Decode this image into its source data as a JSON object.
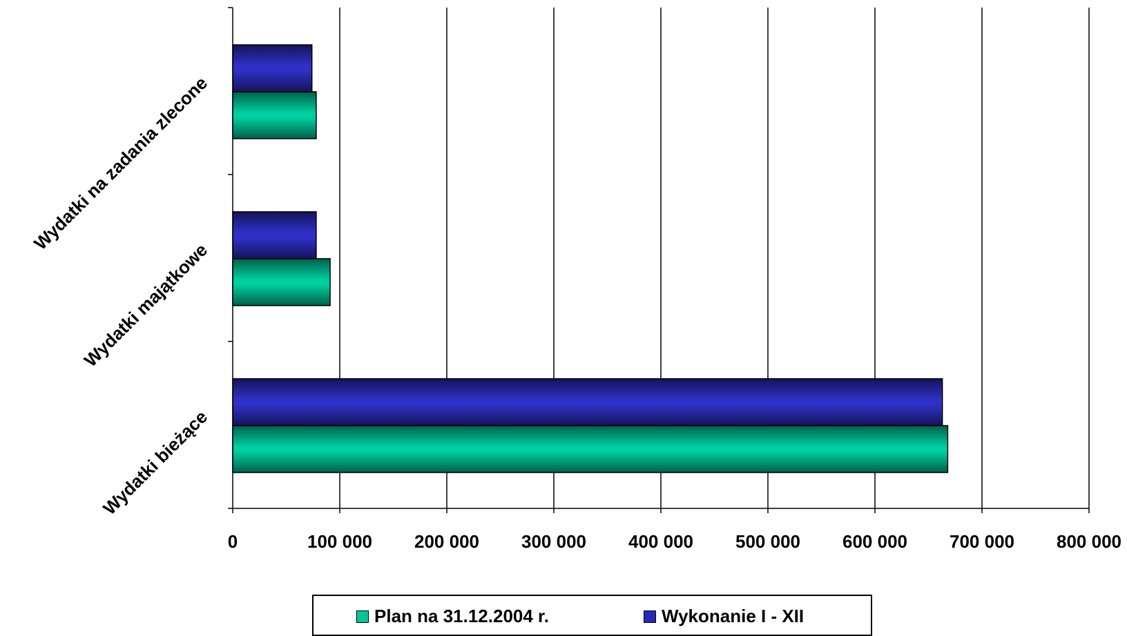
{
  "chart_data": {
    "type": "bar",
    "orientation": "horizontal",
    "categories": [
      "Wydatki bieżące",
      "Wydatki majątkowe",
      "Wydatki na zadania zlecone"
    ],
    "series": [
      {
        "name": "Plan na 31.12.2004 r.",
        "color": "#00c896",
        "values": [
          668000,
          91000,
          78000
        ]
      },
      {
        "name": "Wykonanie I - XII",
        "color": "#2828b8",
        "values": [
          663000,
          78000,
          74000
        ]
      }
    ],
    "xlim": [
      0,
      800000
    ],
    "xticks": [
      0,
      100000,
      200000,
      300000,
      400000,
      500000,
      600000,
      700000,
      800000
    ],
    "xtick_labels": [
      "0",
      "100 000",
      "200 000",
      "300 000",
      "400 000",
      "500 000",
      "600 000",
      "700 000",
      "800 000"
    ],
    "grid": true,
    "legend_position": "bottom"
  }
}
